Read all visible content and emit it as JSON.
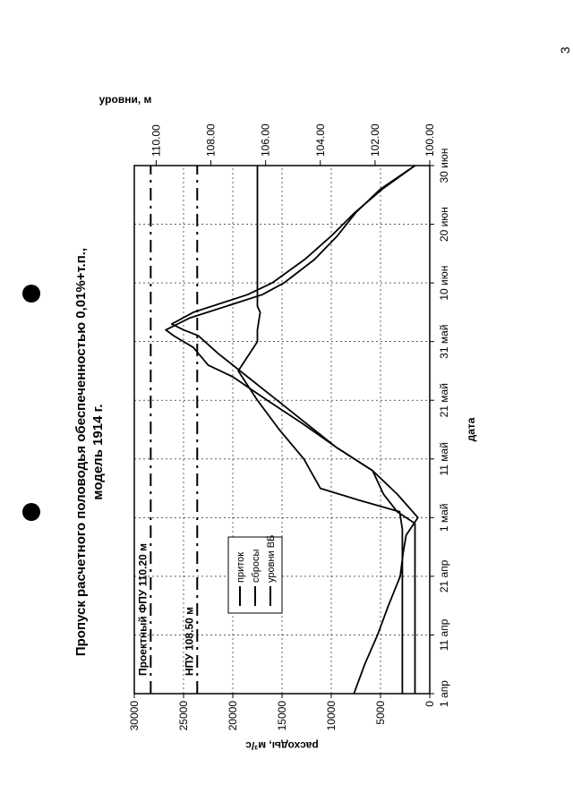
{
  "page": {
    "number": "3"
  },
  "chart_data": {
    "type": "line",
    "title": "Пропуск расчетного половодья обеспеченностью 0,01%+т.п.,",
    "subtitle": "модель 1914 г.",
    "xlabel": "дата",
    "ylabel": "расходы, м³/с",
    "y2label": "уровни, м",
    "categories": [
      "1 апр",
      "11 апр",
      "21 апр",
      "1 май",
      "11 май",
      "21 май",
      "31 май",
      "10 июн",
      "20 июн",
      "30 июн"
    ],
    "xlim": [
      0,
      90
    ],
    "ylim": [
      0,
      30000
    ],
    "y2lim": [
      100.0,
      110.8
    ],
    "yticks": [
      "30000",
      "25000",
      "20000",
      "15000",
      "10000",
      "5000",
      "0"
    ],
    "y2ticks": [
      "110.00",
      "108.00",
      "106.00",
      "104.00",
      "102.00",
      "100.00"
    ],
    "grid": true,
    "legend": {
      "position": "center-left",
      "entries": [
        "приток",
        "сбросы",
        "уровни ВБ"
      ]
    },
    "reference_lines": [
      {
        "label": "Проектный ФПУ 110.20 м",
        "level": 110.2
      },
      {
        "label": "НПУ 108.50 м",
        "level": 108.5
      }
    ],
    "series": [
      {
        "name": "приток",
        "x": [
          0,
          5,
          10,
          15,
          20,
          24,
          27,
          30,
          34,
          38,
          42,
          46,
          50,
          54,
          56,
          59,
          61,
          62,
          64,
          68,
          70,
          74,
          78,
          82,
          86,
          90
        ],
        "y": [
          7700,
          6600,
          5300,
          4200,
          3000,
          2700,
          2400,
          1200,
          3300,
          5800,
          9500,
          12900,
          16500,
          20000,
          22500,
          24000,
          26000,
          26800,
          24400,
          17000,
          14800,
          11700,
          9400,
          7500,
          5000,
          1500
        ]
      },
      {
        "name": "сбросы",
        "x": [
          0,
          10,
          20,
          25,
          29,
          31,
          34,
          38,
          42,
          46,
          50,
          54,
          58,
          61,
          62,
          63,
          65,
          68,
          70,
          74,
          78,
          82,
          86,
          90
        ],
        "y": [
          1500,
          1500,
          1500,
          1500,
          1500,
          3300,
          4700,
          5800,
          9500,
          12500,
          15500,
          18500,
          21500,
          23500,
          25000,
          26200,
          24000,
          18500,
          16000,
          12700,
          10000,
          7600,
          4800,
          1500
        ]
      },
      {
        "name": "уровни ВБ",
        "x": [
          0,
          10,
          20,
          28,
          31,
          33,
          35,
          40,
          45,
          50,
          55,
          60,
          62,
          65,
          66,
          70,
          80,
          90
        ],
        "y": [
          101.0,
          101.0,
          101.0,
          101.0,
          101.1,
          102.6,
          104.0,
          104.6,
          105.5,
          106.3,
          107.0,
          106.3,
          106.3,
          106.2,
          106.3,
          106.3,
          106.3,
          106.3
        ]
      }
    ]
  }
}
